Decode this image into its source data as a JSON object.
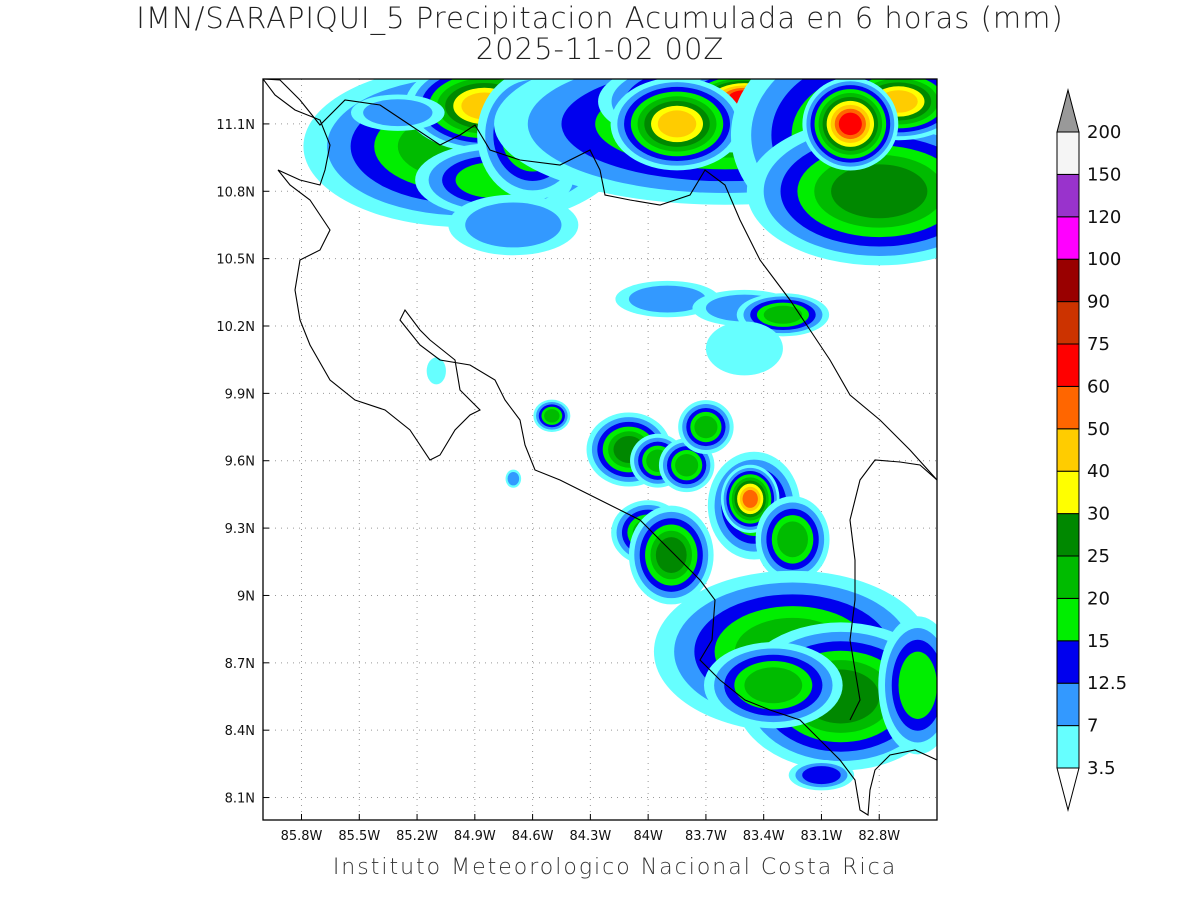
{
  "title": {
    "line1": "IMN/SARAPIQUI_5 Precipitacion Acumulada en 6 horas (mm)",
    "line2": "2025-11-02 00Z"
  },
  "footer": "Instituto Meteorologico Nacional Costa Rica",
  "map": {
    "lon_range": [
      -86.0,
      -82.5
    ],
    "lat_range": [
      8.0,
      11.3
    ],
    "x_ticks": [
      {
        "v": -85.8,
        "label": "85.8W"
      },
      {
        "v": -85.5,
        "label": "85.5W"
      },
      {
        "v": -85.2,
        "label": "85.2W"
      },
      {
        "v": -84.9,
        "label": "84.9W"
      },
      {
        "v": -84.6,
        "label": "84.6W"
      },
      {
        "v": -84.3,
        "label": "84.3W"
      },
      {
        "v": -84.0,
        "label": "84W"
      },
      {
        "v": -83.7,
        "label": "83.7W"
      },
      {
        "v": -83.4,
        "label": "83.4W"
      },
      {
        "v": -83.1,
        "label": "83.1W"
      },
      {
        "v": -82.8,
        "label": "82.8W"
      }
    ],
    "y_ticks": [
      {
        "v": 11.1,
        "label": "11.1N"
      },
      {
        "v": 10.8,
        "label": "10.8N"
      },
      {
        "v": 10.5,
        "label": "10.5N"
      },
      {
        "v": 10.2,
        "label": "10.2N"
      },
      {
        "v": 9.9,
        "label": "9.9N"
      },
      {
        "v": 9.6,
        "label": "9.6N"
      },
      {
        "v": 9.3,
        "label": "9.3N"
      },
      {
        "v": 9.0,
        "label": "9N"
      },
      {
        "v": 8.7,
        "label": "8.7N"
      },
      {
        "v": 8.4,
        "label": "8.4N"
      },
      {
        "v": 8.1,
        "label": "8.1N"
      }
    ],
    "grid": true,
    "grid_style": "dotted"
  },
  "colorbar": {
    "levels": [
      {
        "label": "3.5",
        "color": "#66ffff"
      },
      {
        "label": "7",
        "color": "#3399ff"
      },
      {
        "label": "12.5",
        "color": "#0000ee"
      },
      {
        "label": "15",
        "color": "#00ee00"
      },
      {
        "label": "20",
        "color": "#00bb00"
      },
      {
        "label": "25",
        "color": "#008800"
      },
      {
        "label": "30",
        "color": "#ffff00"
      },
      {
        "label": "40",
        "color": "#ffcc00"
      },
      {
        "label": "50",
        "color": "#ff6600"
      },
      {
        "label": "60",
        "color": "#ff0000"
      },
      {
        "label": "75",
        "color": "#cc3300"
      },
      {
        "label": "90",
        "color": "#990000"
      },
      {
        "label": "100",
        "color": "#ff00ff"
      },
      {
        "label": "120",
        "color": "#9933cc"
      },
      {
        "label": "150",
        "color": "#f5f5f5"
      },
      {
        "label": "200",
        "color": "#999999"
      }
    ]
  },
  "precip_cells": [
    {
      "lon": -84.82,
      "lat": 11.2,
      "rx": 0.32,
      "ry": 0.08,
      "level": 2
    },
    {
      "lon": -84.95,
      "lat": 11.0,
      "rx": 0.35,
      "ry": 0.15,
      "level": 4
    },
    {
      "lon": -84.85,
      "lat": 11.18,
      "rx": 0.12,
      "ry": 0.06,
      "level": 7
    },
    {
      "lon": -84.8,
      "lat": 10.85,
      "rx": 0.2,
      "ry": 0.08,
      "level": 3
    },
    {
      "lon": -84.6,
      "lat": 11.05,
      "rx": 0.12,
      "ry": 0.12,
      "level": 4
    },
    {
      "lon": -85.3,
      "lat": 11.15,
      "rx": 0.18,
      "ry": 0.06,
      "level": 1
    },
    {
      "lon": -84.7,
      "lat": 10.65,
      "rx": 0.25,
      "ry": 0.1,
      "level": 1
    },
    {
      "lon": -83.6,
      "lat": 11.1,
      "rx": 0.5,
      "ry": 0.15,
      "level": 4
    },
    {
      "lon": -83.5,
      "lat": 11.2,
      "rx": 0.2,
      "ry": 0.06,
      "level": 8
    },
    {
      "lon": -83.5,
      "lat": 11.22,
      "rx": 0.08,
      "ry": 0.03,
      "level": 9
    },
    {
      "lon": -83.85,
      "lat": 11.1,
      "rx": 0.1,
      "ry": 0.06,
      "level": 7
    },
    {
      "lon": -82.85,
      "lat": 11.05,
      "rx": 0.3,
      "ry": 0.2,
      "level": 4
    },
    {
      "lon": -82.8,
      "lat": 10.8,
      "rx": 0.25,
      "ry": 0.12,
      "level": 5
    },
    {
      "lon": -82.7,
      "lat": 11.2,
      "rx": 0.1,
      "ry": 0.05,
      "level": 7
    },
    {
      "lon": -82.95,
      "lat": 11.1,
      "rx": 0.06,
      "ry": 0.05,
      "level": 9
    },
    {
      "lon": -83.9,
      "lat": 10.32,
      "rx": 0.2,
      "ry": 0.06,
      "level": 1
    },
    {
      "lon": -83.5,
      "lat": 10.28,
      "rx": 0.2,
      "ry": 0.06,
      "level": 1
    },
    {
      "lon": -83.3,
      "lat": 10.25,
      "rx": 0.1,
      "ry": 0.04,
      "level": 4
    },
    {
      "lon": -83.5,
      "lat": 10.1,
      "rx": 0.2,
      "ry": 0.12,
      "level": 0
    },
    {
      "lon": -84.1,
      "lat": 9.65,
      "rx": 0.08,
      "ry": 0.06,
      "level": 5
    },
    {
      "lon": -83.95,
      "lat": 9.6,
      "rx": 0.06,
      "ry": 0.05,
      "level": 4
    },
    {
      "lon": -83.8,
      "lat": 9.58,
      "rx": 0.06,
      "ry": 0.05,
      "level": 4
    },
    {
      "lon": -83.7,
      "lat": 9.75,
      "rx": 0.06,
      "ry": 0.05,
      "level": 4
    },
    {
      "lon": -83.45,
      "lat": 9.4,
      "rx": 0.1,
      "ry": 0.1,
      "level": 4
    },
    {
      "lon": -83.47,
      "lat": 9.43,
      "rx": 0.04,
      "ry": 0.04,
      "level": 8
    },
    {
      "lon": -83.25,
      "lat": 9.25,
      "rx": 0.08,
      "ry": 0.08,
      "level": 4
    },
    {
      "lon": -84.0,
      "lat": 9.28,
      "rx": 0.08,
      "ry": 0.06,
      "level": 4
    },
    {
      "lon": -83.88,
      "lat": 9.18,
      "rx": 0.08,
      "ry": 0.08,
      "level": 5
    },
    {
      "lon": -83.25,
      "lat": 8.75,
      "rx": 0.3,
      "ry": 0.15,
      "level": 4
    },
    {
      "lon": -83.0,
      "lat": 8.55,
      "rx": 0.2,
      "ry": 0.12,
      "level": 5
    },
    {
      "lon": -83.35,
      "lat": 8.6,
      "rx": 0.15,
      "ry": 0.08,
      "level": 4
    },
    {
      "lon": -82.6,
      "lat": 8.6,
      "rx": 0.1,
      "ry": 0.15,
      "level": 3
    },
    {
      "lon": -83.1,
      "lat": 8.2,
      "rx": 0.1,
      "ry": 0.04,
      "level": 2
    },
    {
      "lon": -84.5,
      "lat": 9.8,
      "rx": 0.04,
      "ry": 0.03,
      "level": 4
    },
    {
      "lon": -84.7,
      "lat": 9.52,
      "rx": 0.03,
      "ry": 0.03,
      "level": 1
    },
    {
      "lon": -85.1,
      "lat": 10.0,
      "rx": 0.05,
      "ry": 0.06,
      "level": 0
    }
  ]
}
